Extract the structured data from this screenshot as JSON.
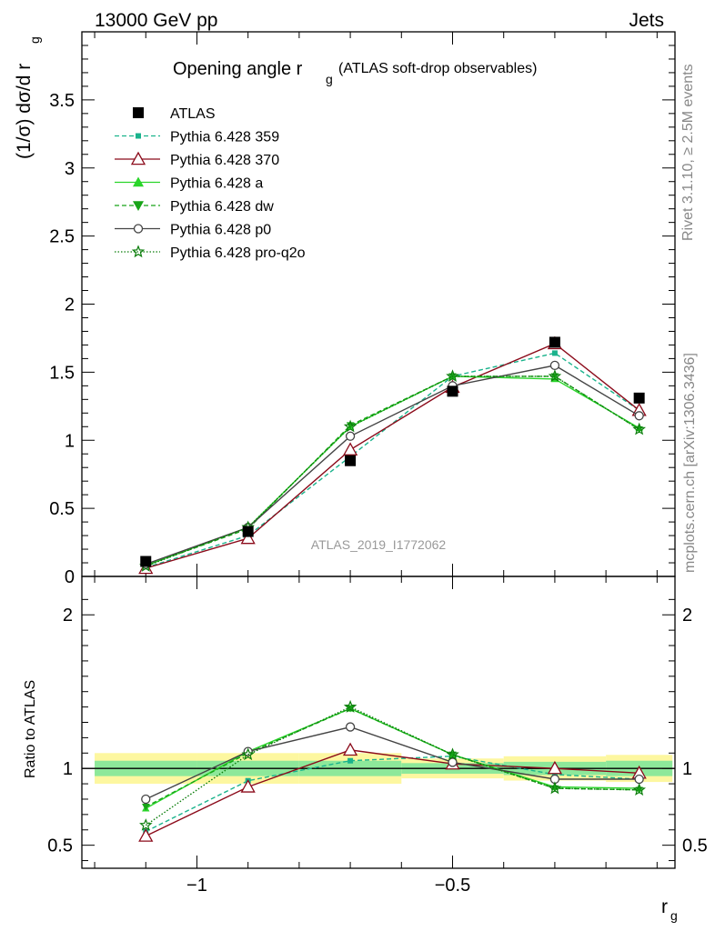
{
  "header": {
    "left": "13000 GeV pp",
    "right": "Jets"
  },
  "side_labels": {
    "rivet": "Rivet 3.1.10, ≥ 2.5M events",
    "mcplots": "mcplots.cern.ch [arXiv:1306.3436]"
  },
  "colors": {
    "ATLAS": "#000000",
    "Pythia 6.428 359": "#1ab38c",
    "Pythia 6.428 370": "#8b0a1a",
    "Pythia 6.428 a": "#2ad52a",
    "Pythia 6.428 dw": "#17a417",
    "Pythia 6.428 p0": "#444444",
    "Pythia 6.428 pro-q2o": "#0b7d0b",
    "band_inner": "#8de89a",
    "band_outer": "#fdf7a0"
  },
  "chart_data": {
    "type": "line",
    "title_main": "Opening angle r",
    "title_sub": "g",
    "title_suffix": "(ATLAS soft-drop observables)",
    "analysis_id": "ATLAS_2019_I1772062",
    "ylabel": "(1/σ) dσ/d r",
    "ylabel_sub": "g",
    "xlabel": "r",
    "xlabel_sub": "g",
    "ratio_ylabel": "Ratio to ATLAS",
    "xlim": [
      -1.225,
      -0.065
    ],
    "ylim": [
      0,
      4.0
    ],
    "ratio_ylim": [
      0.35,
      2.25
    ],
    "x_ticks": [
      {
        "value": -1.0,
        "label": "−1"
      },
      {
        "value": -0.5,
        "label": "−0.5"
      }
    ],
    "y_ticks": [
      {
        "value": 0,
        "label": "0"
      },
      {
        "value": 0.5,
        "label": "0.5"
      },
      {
        "value": 1,
        "label": "1"
      },
      {
        "value": 1.5,
        "label": "1.5"
      },
      {
        "value": 2,
        "label": "2"
      },
      {
        "value": 2.5,
        "label": "2.5"
      },
      {
        "value": 3,
        "label": "3"
      },
      {
        "value": 3.5,
        "label": "3.5"
      }
    ],
    "ratio_y_ticks": [
      {
        "value": 0.5,
        "label": "0.5"
      },
      {
        "value": 1,
        "label": "1"
      },
      {
        "value": 2,
        "label": "2"
      }
    ],
    "bin_edges": [
      -1.2,
      -1.0,
      -0.8,
      -0.6,
      -0.4,
      -0.2,
      -0.07
    ],
    "x": [
      -1.1,
      -0.9,
      -0.7,
      -0.5,
      -0.3,
      -0.135
    ],
    "data": {
      "name": "ATLAS",
      "values": [
        0.11,
        0.33,
        0.85,
        1.36,
        1.72,
        1.31
      ],
      "band_inner": [
        0.07,
        0.05,
        0.05,
        0.02,
        0.04,
        0.04
      ],
      "band_outer": [
        0.09,
        0.07,
        0.06,
        0.02,
        0.05,
        0.05
      ]
    },
    "series": [
      {
        "name": "Pythia 6.428 359",
        "values": [
          0.065,
          0.3,
          0.88,
          1.47,
          1.64,
          1.22
        ],
        "ratio": [
          0.59,
          0.92,
          1.05,
          1.08,
          0.96,
          0.93
        ],
        "marker": "square-small",
        "dash": "5,3"
      },
      {
        "name": "Pythia 6.428 370",
        "values": [
          0.06,
          0.28,
          0.93,
          1.39,
          1.71,
          1.22
        ],
        "ratio": [
          0.56,
          0.88,
          1.12,
          1.03,
          1.0,
          0.97
        ],
        "marker": "triangle-open",
        "dash": ""
      },
      {
        "name": "Pythia 6.428 a",
        "values": [
          0.08,
          0.36,
          1.1,
          1.47,
          1.45,
          1.09
        ],
        "ratio": [
          0.74,
          1.11,
          1.39,
          1.09,
          0.88,
          0.87
        ],
        "marker": "triangle",
        "dash": ""
      },
      {
        "name": "Pythia 6.428 dw",
        "values": [
          0.08,
          0.35,
          1.11,
          1.47,
          1.47,
          1.08
        ],
        "ratio": [
          0.75,
          1.1,
          1.39,
          1.09,
          0.87,
          0.86
        ],
        "marker": "triangle-down",
        "dash": "5,3"
      },
      {
        "name": "Pythia 6.428 p0",
        "values": [
          0.09,
          0.36,
          1.03,
          1.4,
          1.55,
          1.18
        ],
        "ratio": [
          0.8,
          1.11,
          1.27,
          1.04,
          0.93,
          0.93
        ],
        "marker": "circle-open",
        "dash": ""
      },
      {
        "name": "Pythia 6.428 pro-q2o",
        "values": [
          0.075,
          0.36,
          1.1,
          1.47,
          1.47,
          1.08
        ],
        "ratio": [
          0.63,
          1.09,
          1.4,
          1.09,
          0.87,
          0.86
        ],
        "marker": "star",
        "dash": "1.5,2"
      }
    ]
  }
}
